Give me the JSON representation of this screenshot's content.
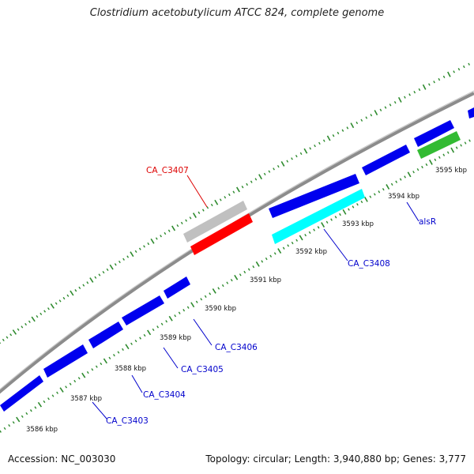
{
  "title": "Clostridium acetobutylicum ATCC 824, complete genome",
  "footer": {
    "accession": "Accession: NC_003030",
    "summary": "Topology: circular; Length: 3,940,880 bp; Genes: 3,777"
  },
  "colors": {
    "backbone": "#8c8c8c",
    "tick": "#2e8b2e",
    "gene_forward": "#0000ee",
    "gene_selected": "#ff0000",
    "gene_grey": "#c0c0c0",
    "gene_cyan": "#00ffff",
    "gene_green": "#33bb33",
    "label_blue": "#0000cc",
    "label_red": "#dd0000"
  },
  "scale_labels": [
    "3586 kbp",
    "3587 kbp",
    "3588 kbp",
    "3589 kbp",
    "3590 kbp",
    "3591 kbp",
    "3592 kbp",
    "3593 kbp",
    "3594 kbp",
    "3595 kbp"
  ],
  "gene_labels": [
    "CA_C3403",
    "CA_C3404",
    "CA_C3405",
    "CA_C3406",
    "CA_C3407",
    "CA_C3408",
    "alsR"
  ]
}
